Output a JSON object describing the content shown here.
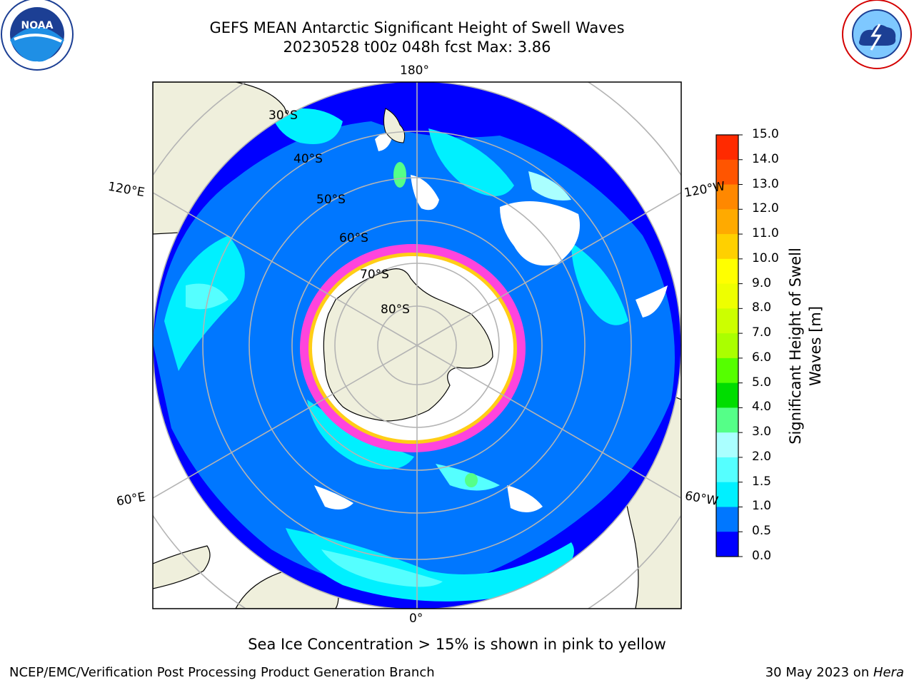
{
  "title_line1": "GEFS MEAN Antarctic Significant Height of Swell Waves",
  "title_line2": "20230528 t00z 048h fcst   Max: 3.86",
  "logos": {
    "left": "noaa-logo",
    "right": "nws-logo"
  },
  "map": {
    "projection": "south-polar-stereographic",
    "longitude_labels": {
      "top": "180°",
      "bottom": "0°",
      "upper_left": "120°E",
      "upper_right": "120°W",
      "lower_left": "60°E",
      "lower_right": "60°W"
    },
    "latitude_labels": [
      "30°S",
      "40°S",
      "50°S",
      "60°S",
      "70°S",
      "80°S"
    ],
    "colors": {
      "land": "#efefdc",
      "grid": "#b4b4b4",
      "ice": "#ff44dd"
    }
  },
  "colorbar": {
    "title_line1": "Significant Height of Swell",
    "title_line2": "Waves [m]",
    "ticks": [
      "15.0",
      "14.0",
      "13.0",
      "12.0",
      "11.0",
      "10.0",
      "9.0",
      "8.0",
      "7.0",
      "6.0",
      "5.0",
      "4.0",
      "3.0",
      "2.0",
      "1.5",
      "1.0",
      "0.5",
      "0.0"
    ],
    "colors": [
      "#0000ff",
      "#0077ff",
      "#00f0ff",
      "#55ffff",
      "#aaffff",
      "#55ff88",
      "#00dd00",
      "#55ff00",
      "#aaff00",
      "#ccff00",
      "#eeff00",
      "#ffff00",
      "#ffd000",
      "#ffaa00",
      "#ff8800",
      "#ff5500",
      "#ff2a00",
      "#ff0000"
    ]
  },
  "note": "Sea Ice Concentration > 15% is shown in pink to yellow",
  "footer": {
    "credit": "NCEP/EMC/Verification Post Processing Product Generation Branch",
    "date": "30 May 2023 on ",
    "host": "Hera"
  }
}
